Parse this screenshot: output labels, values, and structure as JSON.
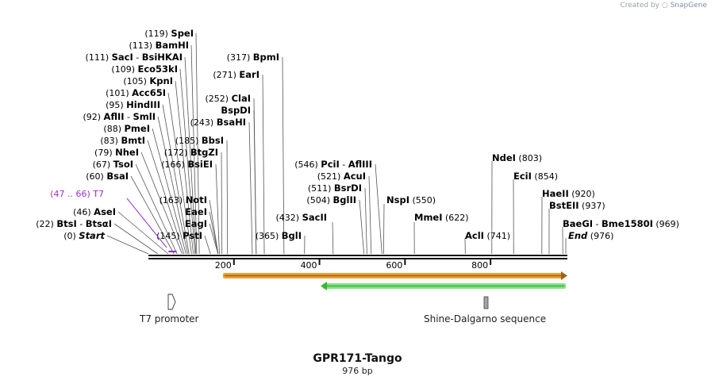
{
  "credit": {
    "prefix": "Created by",
    "brand": "SnapGene"
  },
  "construct": {
    "name": "GPR171-Tango",
    "length_label": "976 bp",
    "length_bp": 976
  },
  "ruler": {
    "ticks": [
      "200",
      "400",
      "600",
      "800"
    ]
  },
  "sites_left": [
    {
      "pos": "(119)",
      "name": "SpeI",
      "bp": 119
    },
    {
      "pos": "(113)",
      "name": "BamHI",
      "bp": 113
    },
    {
      "pos": "(111)",
      "name": "SacI",
      "sep": "-",
      "name2": "BsiHKAI",
      "bp": 111
    },
    {
      "pos": "(109)",
      "name": "Eco53kI",
      "bp": 109
    },
    {
      "pos": "(105)",
      "name": "KpnI",
      "bp": 105
    },
    {
      "pos": "(101)",
      "name": "Acc65I",
      "bp": 101
    },
    {
      "pos": "(95)",
      "name": "HindIII",
      "bp": 95
    },
    {
      "pos": "(92)",
      "name": "AflII",
      "sep": "-",
      "name2": "SmlI",
      "bp": 92
    },
    {
      "pos": "(88)",
      "name": "PmeI",
      "bp": 88
    },
    {
      "pos": "(83)",
      "name": "BmtI",
      "bp": 83
    },
    {
      "pos": "(79)",
      "name": "NheI",
      "bp": 79
    },
    {
      "pos": "(67)",
      "name": "TsoI",
      "bp": 67
    },
    {
      "pos": "(60)",
      "name": "BsaI",
      "bp": 60
    },
    {
      "pos": "(46)",
      "name": "AseI",
      "bp": 46
    },
    {
      "pos": "(22)",
      "name": "BtsI",
      "sep": "-",
      "name2": "BtsαI",
      "bp": 22
    },
    {
      "pos": "(0)",
      "name": "Start",
      "bp": 0,
      "italic": true
    }
  ],
  "sites_mid": [
    {
      "pos": "(317)",
      "name": "BpmI",
      "bp": 317
    },
    {
      "pos": "(271)",
      "name": "EarI",
      "bp": 271
    },
    {
      "pos": "(252)",
      "name": "ClaI",
      "bp": 252
    },
    {
      "name": "BspDI",
      "bp": 252
    },
    {
      "pos": "(243)",
      "name": "BsaHI",
      "bp": 243
    },
    {
      "pos": "(185)",
      "name": "BbsI",
      "bp": 185
    },
    {
      "pos": "(172)",
      "name": "BtgZI",
      "bp": 172
    },
    {
      "pos": "(166)",
      "name": "BsiEI",
      "bp": 166
    },
    {
      "pos": "(163)",
      "name": "NotI",
      "bp": 163
    },
    {
      "name": "EaeI",
      "bp": 163
    },
    {
      "name": "EagI",
      "bp": 163
    },
    {
      "pos": "(145)",
      "name": "PstI",
      "bp": 145
    },
    {
      "pos": "(365)",
      "name": "BglI",
      "bp": 365
    },
    {
      "pos": "(432)",
      "name": "SacII",
      "bp": 432
    }
  ],
  "sites_right": [
    {
      "pos": "(546)",
      "name": "PciI",
      "sep": "-",
      "name2": "AflIII",
      "bp": 546
    },
    {
      "pos": "(521)",
      "name": "AcuI",
      "bp": 521
    },
    {
      "pos": "(511)",
      "name": "BsrDI",
      "bp": 511
    },
    {
      "pos": "(504)",
      "name": "BglII",
      "bp": 504
    },
    {
      "name": "NspI",
      "pos": "(550)",
      "bp": 550
    },
    {
      "name": "MmeI",
      "pos": "(622)",
      "bp": 622
    },
    {
      "name": "AclI",
      "pos": "(741)",
      "bp": 741
    },
    {
      "name": "NdeI",
      "pos": "(803)",
      "bp": 803
    },
    {
      "name": "EciI",
      "pos": "(854)",
      "bp": 854
    },
    {
      "name": "HaeII",
      "pos": "(920)",
      "bp": 920
    },
    {
      "name": "BstEII",
      "pos": "(937)",
      "bp": 937
    },
    {
      "name": "BaeGI",
      "sep": "-",
      "name2": "Bme1580I",
      "pos": "(969)",
      "bp": 969
    },
    {
      "name": "End",
      "pos": "(976)",
      "bp": 976,
      "italic": true
    }
  ],
  "primer": {
    "range": "(47 .. 66)",
    "name": "T7",
    "start_bp": 47,
    "end_bp": 66
  },
  "features": [
    {
      "name": "T7 promoter",
      "color": "#ffffff"
    },
    {
      "name": "Shine-Dalgarno sequence",
      "color": "#a0a4a8"
    }
  ],
  "colors": {
    "orange_arrow": "#f0a030",
    "orange_fill": "#a06020",
    "green_arrow": "#38b838",
    "green_fill": "#88e088",
    "primer": "#9b30c8",
    "backbone": "#111111"
  }
}
